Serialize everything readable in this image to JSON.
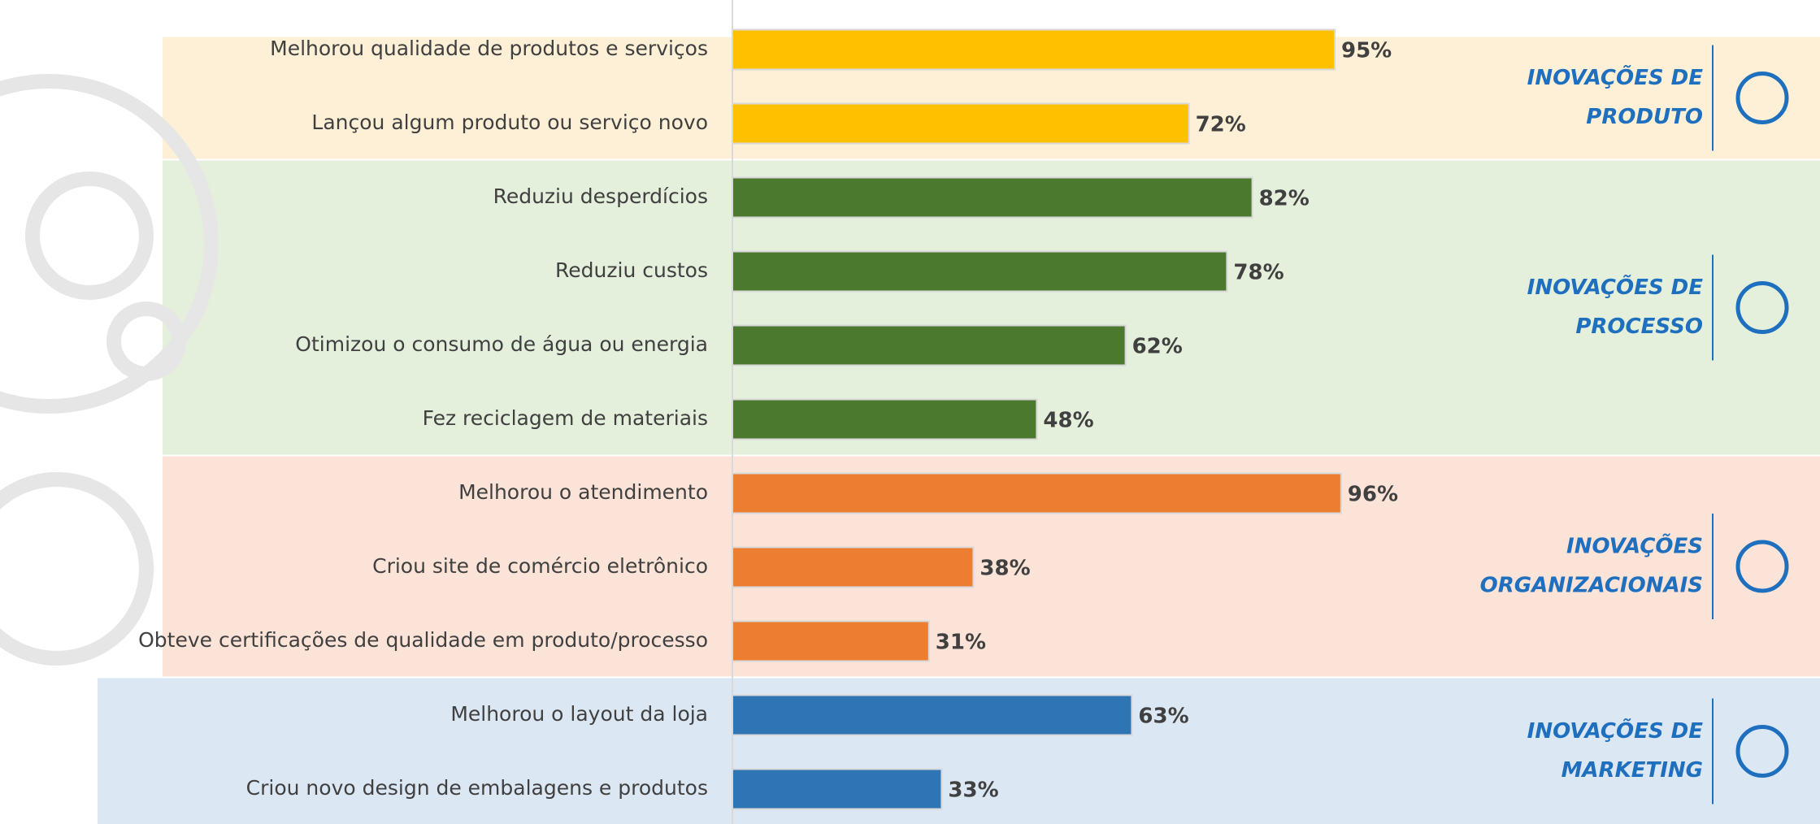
{
  "chart_data": {
    "type": "bar",
    "orientation": "horizontal",
    "groups": [
      {
        "name_lines": [
          "INOVAÇÕES DE",
          "PRODUTO"
        ],
        "color": "#FFC000",
        "band_color": "#FDF0D6",
        "categories": [
          "Melhorou qualidade de produtos e serviços",
          "Lançou algum produto ou serviço novo"
        ],
        "values": [
          95,
          72
        ],
        "value_labels": [
          "95%",
          "72%"
        ]
      },
      {
        "name_lines": [
          "INOVAÇÕES DE",
          "PROCESSO"
        ],
        "color": "#4B7A2E",
        "band_color": "#E4EFDC",
        "categories": [
          "Reduziu desperdícios",
          "Reduziu custos",
          "Otimizou o consumo de água ou energia",
          "Fez reciclagem de materiais"
        ],
        "values": [
          82,
          78,
          62,
          48
        ],
        "value_labels": [
          "82%",
          "78%",
          "62%",
          "48%"
        ]
      },
      {
        "name_lines": [
          "INOVAÇÕES",
          "ORGANIZACIONAIS"
        ],
        "color": "#ED7D31",
        "band_color": "#FBE3D7",
        "categories": [
          "Melhorou o atendimento",
          "Criou site de comércio eletrônico",
          "Obteve certificações de qualidade em produto/processo"
        ],
        "values": [
          96,
          38,
          31
        ],
        "value_labels": [
          "96%",
          "38%",
          "31%"
        ]
      },
      {
        "name_lines": [
          "INOVAÇÕES DE",
          "MARKETING"
        ],
        "color": "#2E75B6",
        "band_color": "#DCE7F4",
        "categories": [
          "Melhorou o layout da loja",
          "Criou novo design de embalagens e produtos"
        ],
        "values": [
          63,
          33
        ],
        "value_labels": [
          "63%",
          "33%"
        ]
      }
    ]
  }
}
